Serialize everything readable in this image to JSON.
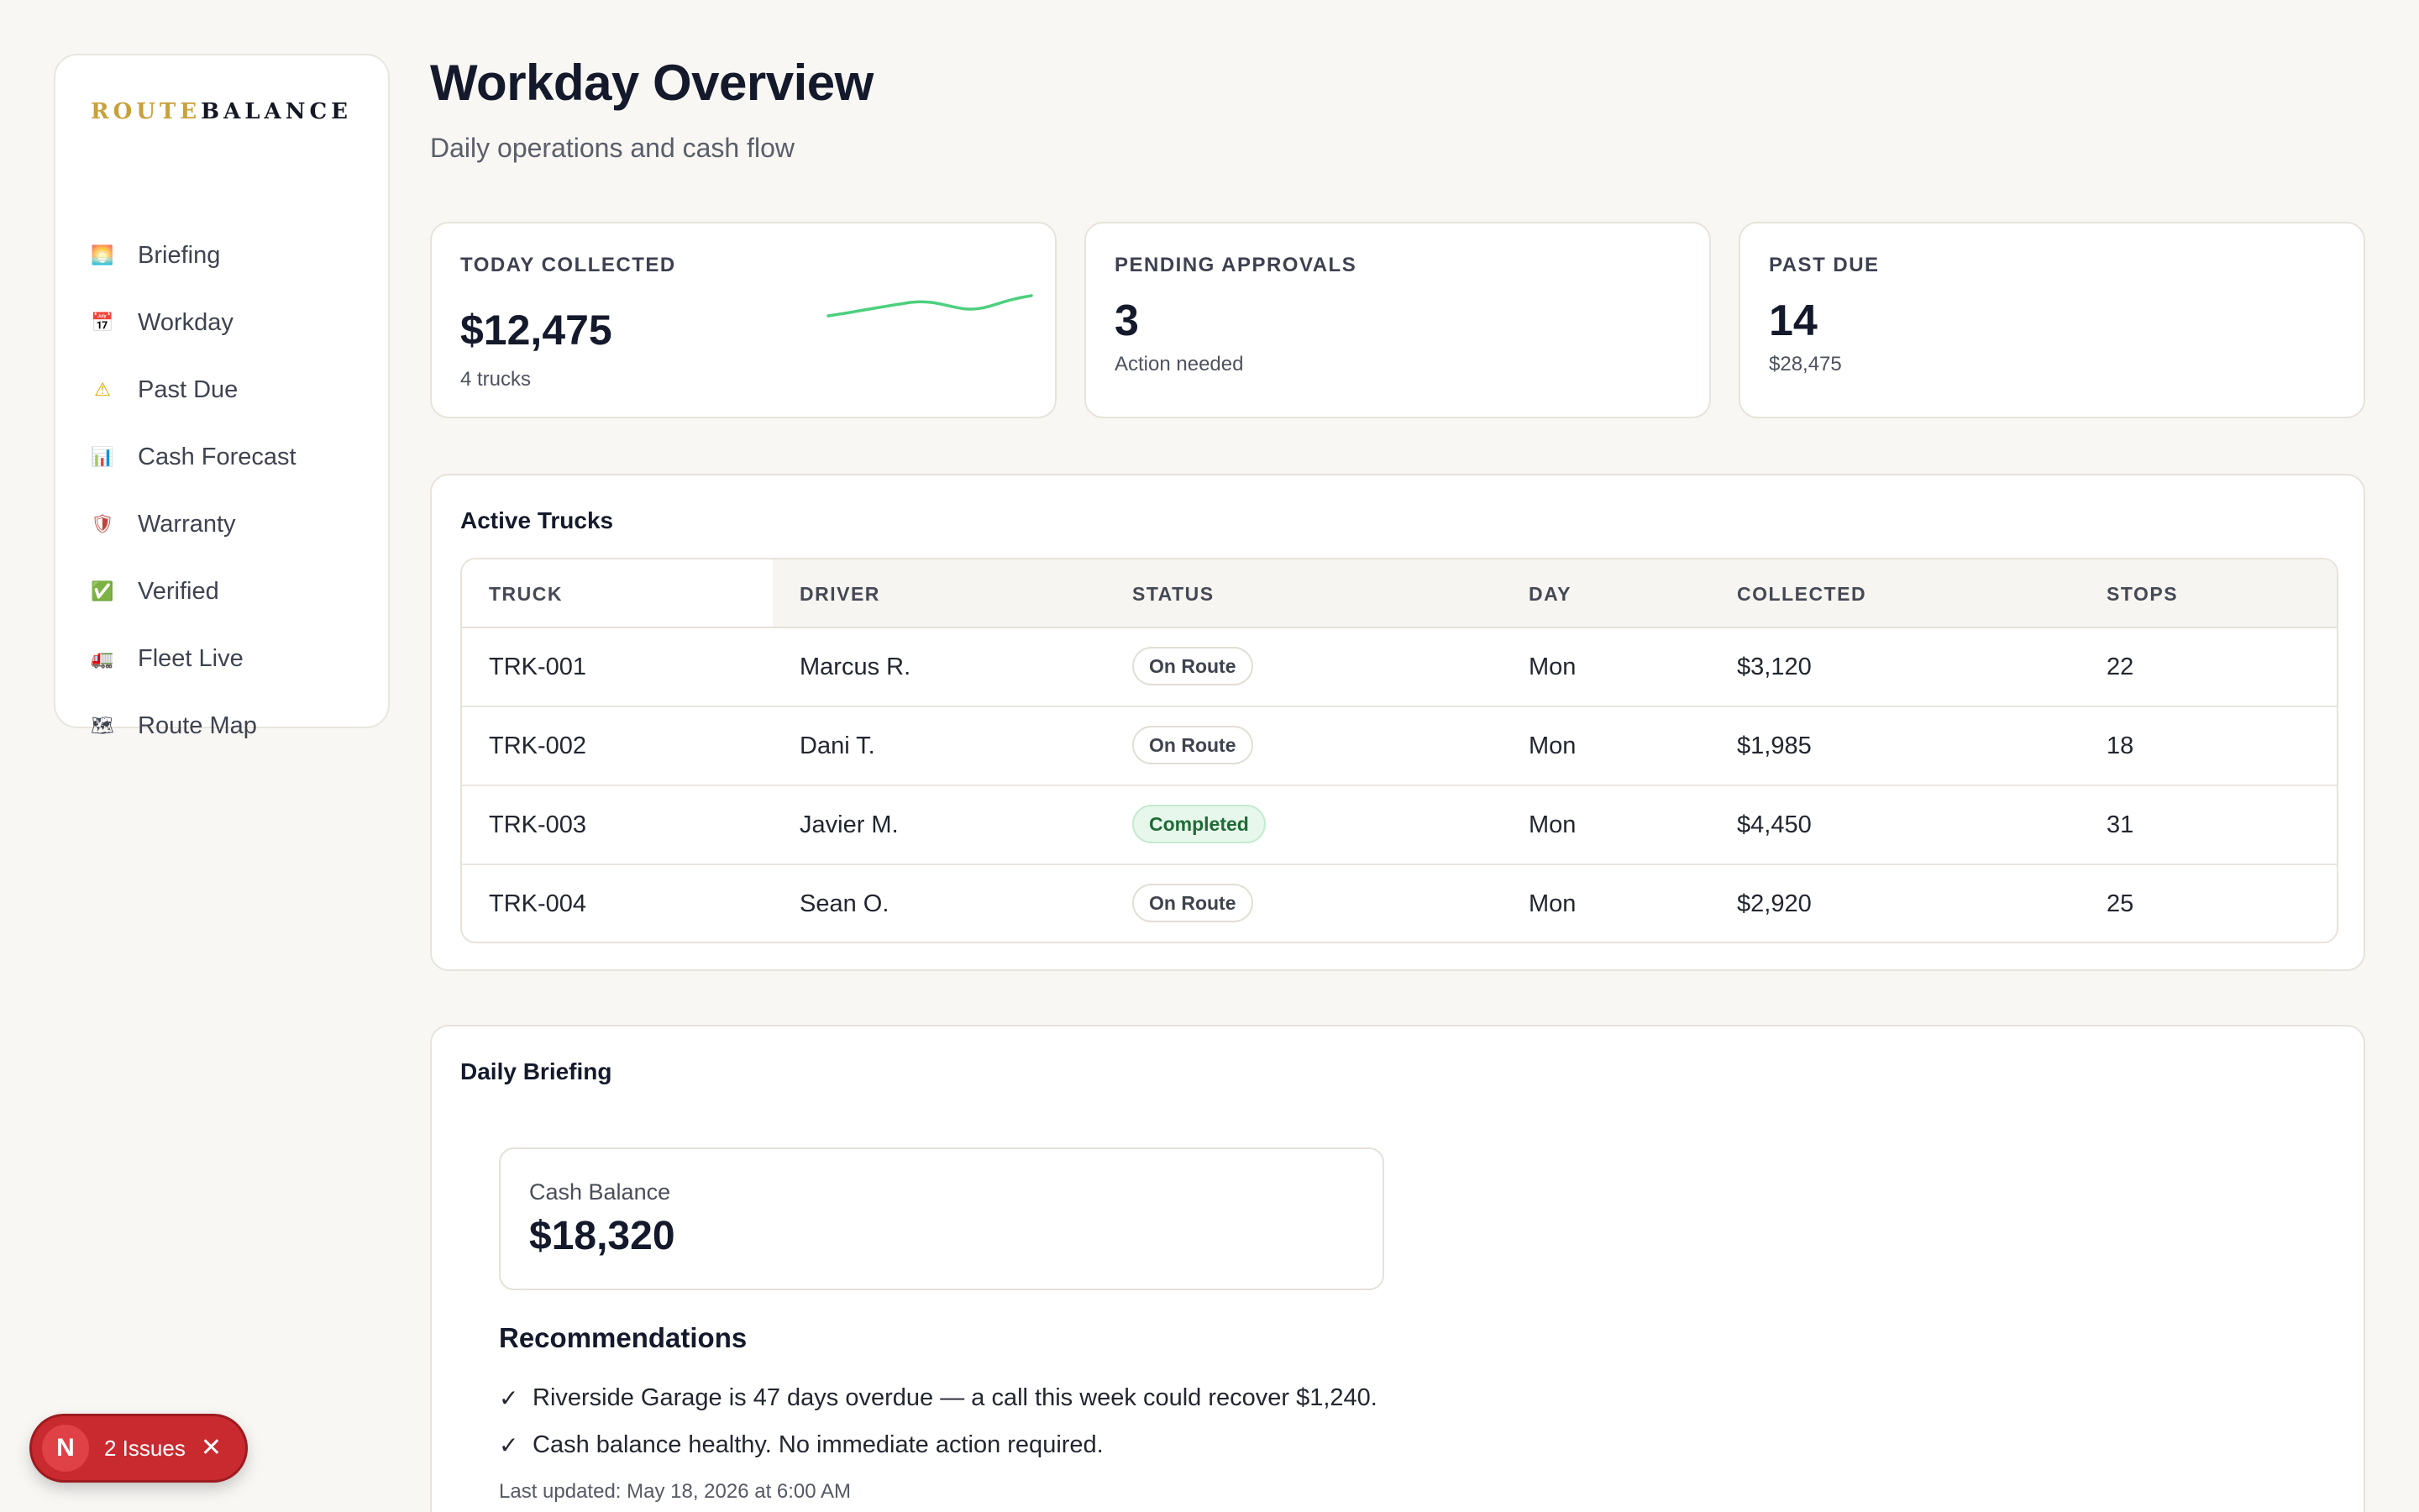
{
  "brand": {
    "part_a": "ROUTE",
    "part_b": "BALANCE",
    "accent": "#c9a13b"
  },
  "sidebar": {
    "items": [
      {
        "label": "Briefing",
        "icon": "sunrise-icon",
        "glyph": "🌅"
      },
      {
        "label": "Workday",
        "icon": "calendar-icon",
        "glyph": "📅"
      },
      {
        "label": "Past Due",
        "icon": "warning-icon",
        "glyph": "⚠"
      },
      {
        "label": "Cash Forecast",
        "icon": "bar-chart-icon",
        "glyph": "📊"
      },
      {
        "label": "Warranty",
        "icon": "shield-icon",
        "glyph": "🛡"
      },
      {
        "label": "Verified",
        "icon": "check-box-icon",
        "glyph": "✅"
      },
      {
        "label": "Fleet Live",
        "icon": "truck-icon",
        "glyph": "🚛"
      },
      {
        "label": "Route Map",
        "icon": "map-icon",
        "glyph": "🗺"
      }
    ]
  },
  "header": {
    "title": "Workday Overview",
    "subtitle": "Daily operations and cash flow"
  },
  "stats": {
    "today": {
      "label": "TODAY COLLECTED",
      "value": "$12,475",
      "sub": "4 trucks",
      "sparkline_color": "#4cd07d"
    },
    "pending": {
      "label": "PENDING APPROVALS",
      "value": "3",
      "sub": "Action needed"
    },
    "pastdue": {
      "label": "PAST DUE",
      "value": "14",
      "sub": "$28,475"
    }
  },
  "trucks": {
    "title": "Active Trucks",
    "columns": [
      "TRUCK",
      "DRIVER",
      "STATUS",
      "DAY",
      "COLLECTED",
      "STOPS"
    ],
    "rows": [
      {
        "truck": "TRK-001",
        "driver": "Marcus R.",
        "status": "On Route",
        "day": "Mon",
        "collected": "$3,120",
        "stops": "22"
      },
      {
        "truck": "TRK-002",
        "driver": "Dani T.",
        "status": "On Route",
        "day": "Mon",
        "collected": "$1,985",
        "stops": "18"
      },
      {
        "truck": "TRK-003",
        "driver": "Javier M.",
        "status": "Completed",
        "day": "Mon",
        "collected": "$4,450",
        "stops": "31"
      },
      {
        "truck": "TRK-004",
        "driver": "Sean O.",
        "status": "On Route",
        "day": "Mon",
        "collected": "$2,920",
        "stops": "25"
      }
    ]
  },
  "briefing": {
    "title": "Daily Briefing",
    "cash_label": "Cash Balance",
    "cash_value": "$18,320",
    "reco_title": "Recommendations",
    "recommendations": [
      "Riverside Garage is 47 days overdue — a call this week could recover $1,240.",
      "Cash balance healthy. No immediate action required."
    ],
    "check_glyph": "✓",
    "updated": "Last updated: May 18, 2026 at 6:00 AM"
  },
  "issues": {
    "logo": "N",
    "label": "2 Issues",
    "close_glyph": "✕",
    "color": "#c92a2f"
  }
}
